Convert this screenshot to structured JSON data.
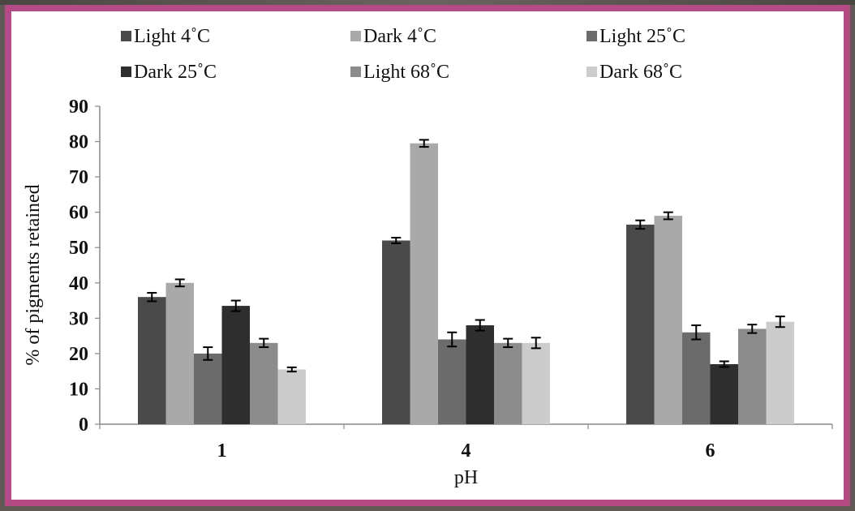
{
  "chart_data": {
    "type": "bar",
    "title": "",
    "xlabel": "pH",
    "ylabel": "% of pigments retained",
    "categories": [
      "1",
      "4",
      "6"
    ],
    "ylim": [
      0,
      90
    ],
    "yticks": [
      "0",
      "10",
      "20",
      "30",
      "40",
      "50",
      "60",
      "70",
      "80",
      "90"
    ],
    "legend_position": "top",
    "series": [
      {
        "name": "Light 4˚C",
        "color": "#4a4a4a",
        "values": [
          36,
          52,
          56.5
        ],
        "errors": [
          1.2,
          0.8,
          1.2
        ]
      },
      {
        "name": "Dark 4˚C",
        "color": "#a9a9a9",
        "values": [
          40,
          79.5,
          59
        ],
        "errors": [
          1.0,
          1.0,
          1.0
        ]
      },
      {
        "name": "Light 25˚C",
        "color": "#6b6b6b",
        "values": [
          20,
          24,
          26
        ],
        "errors": [
          1.8,
          2.0,
          2.0
        ]
      },
      {
        "name": "Dark 25˚C",
        "color": "#2e2e2e",
        "values": [
          33.5,
          28,
          17
        ],
        "errors": [
          1.5,
          1.5,
          0.8
        ]
      },
      {
        "name": "Light 68˚C",
        "color": "#8c8c8c",
        "values": [
          23,
          23,
          27
        ],
        "errors": [
          1.2,
          1.2,
          1.2
        ]
      },
      {
        "name": "Dark 68˚C",
        "color": "#cccccc",
        "values": [
          15.5,
          23,
          29
        ],
        "errors": [
          0.6,
          1.5,
          1.5
        ]
      }
    ]
  }
}
